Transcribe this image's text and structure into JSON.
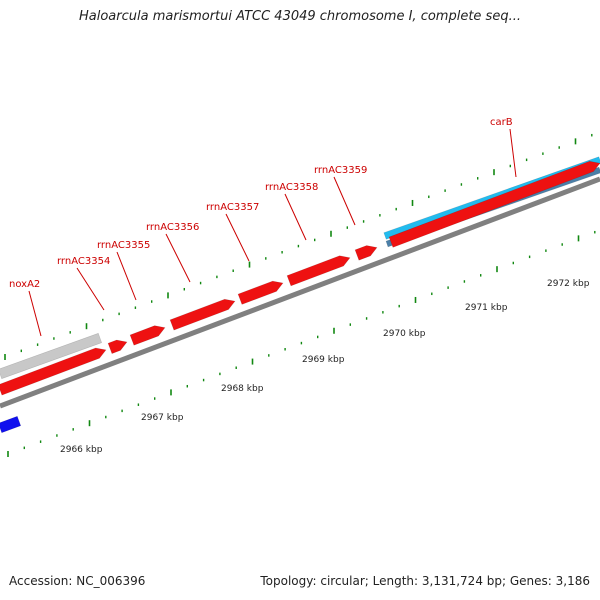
{
  "title": "Haloarcula marismortui ATCC 43049 chromosome I, complete seq...",
  "accession_text": "Accession: NC_006396",
  "stats_text": "Topology: circular; Length: 3,131,724 bp; Genes: 3,186",
  "kbp_labels": [
    "2966 kbp",
    "2967 kbp",
    "2968 kbp",
    "2969 kbp",
    "2970 kbp",
    "2971 kbp",
    "2972 kbp"
  ],
  "gene_labels": [
    "noxA2",
    "rrnAC3354",
    "rrnAC3355",
    "rrnAC3356",
    "rrnAC3357",
    "rrnAC3358",
    "rrnAC3359",
    "carB"
  ],
  "colors": {
    "gene_red": "#ee1111",
    "grey_feature": "#c8c8c8",
    "cyan_feature": "#22bbee",
    "steel_feature": "#4a7fa8",
    "blue_feature": "#1111ee",
    "backbone": "#808080",
    "tick_green": "#118811",
    "label_red": "#cc0000"
  }
}
